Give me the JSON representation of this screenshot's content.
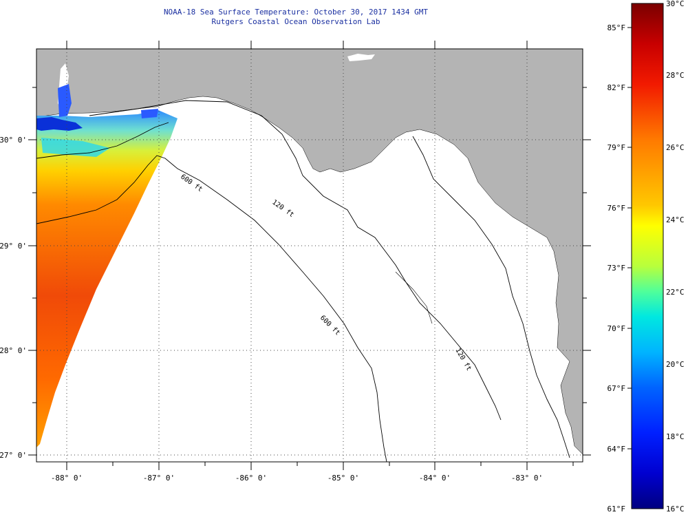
{
  "title": {
    "line1": "NOAA-18 Sea Surface Temperature:  October 30, 2017 1434 GMT",
    "line2": "Rutgers Coastal Ocean Observation Lab"
  },
  "axes": {
    "lon_labels": [
      "-88° 0'",
      "-87° 0'",
      "-86° 0'",
      "-85° 0'",
      "-84° 0'",
      "-83° 0'"
    ],
    "lat_labels": [
      "30° 0'",
      "29° 0'",
      "28° 0'",
      "27° 0'"
    ]
  },
  "contours": {
    "c1": "120 ft",
    "c2": "600 ft",
    "c3": "120 ft",
    "c4": "600 ft"
  },
  "colorbar": {
    "celsius": [
      "30°C",
      "28°C",
      "26°C",
      "24°C",
      "22°C",
      "20°C",
      "18°C",
      "16°C"
    ],
    "fahrenheit": [
      "85°F",
      "82°F",
      "79°F",
      "76°F",
      "73°F",
      "70°F",
      "67°F",
      "64°F",
      "61°F"
    ]
  },
  "colors": {
    "land": "#b4b4b4",
    "ocean": "#ffffff",
    "title": "#1a2fa0"
  }
}
